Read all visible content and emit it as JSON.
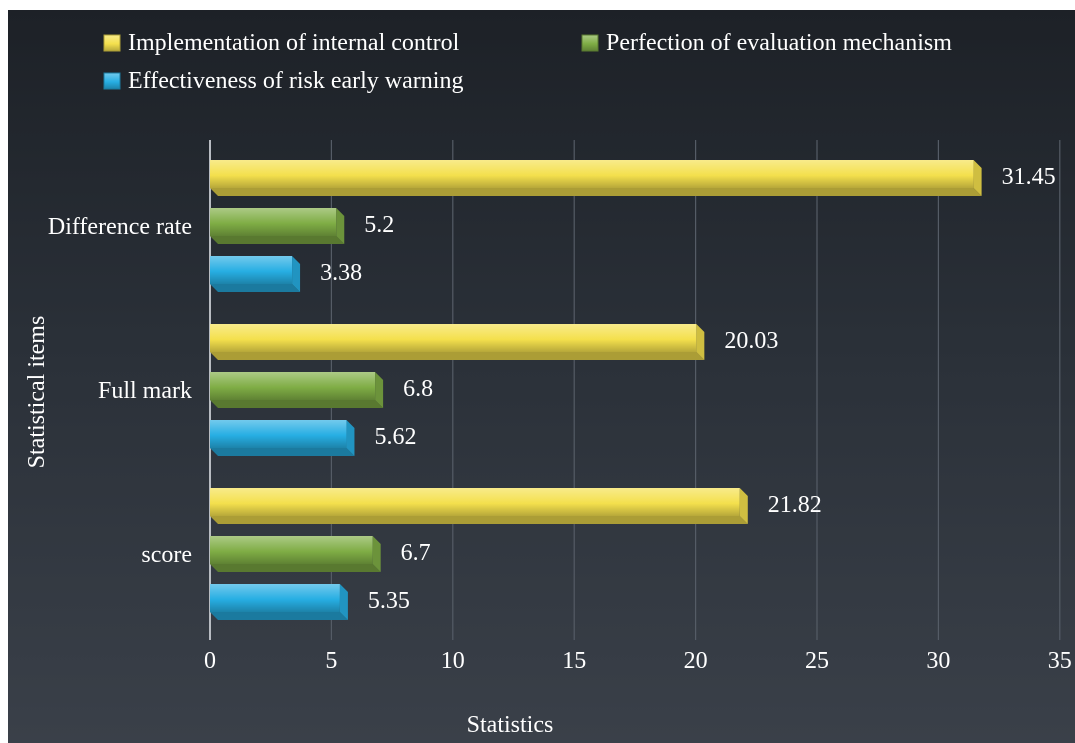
{
  "chart_data": {
    "type": "bar",
    "orientation": "horizontal",
    "categories": [
      "Difference rate",
      "Full mark",
      "score"
    ],
    "series": [
      {
        "name": "Implementation of internal control",
        "values": [
          31.45,
          20.03,
          21.82
        ],
        "color": "#f4e04d"
      },
      {
        "name": "Perfection of evaluation mechanism",
        "values": [
          5.2,
          6.8,
          6.7
        ],
        "color": "#7fad45"
      },
      {
        "name": "Effectiveness of risk early warning",
        "values": [
          3.38,
          5.62,
          5.35
        ],
        "color": "#27aee3"
      }
    ],
    "data_labels": [
      [
        "31.45",
        "20.03",
        "21.82"
      ],
      [
        "5.2",
        "6.8",
        "6.7"
      ],
      [
        "3.38",
        "5.62",
        "5.35"
      ]
    ],
    "xlabel": "Statistics",
    "ylabel": "Statistical items",
    "xlim": [
      0,
      35
    ],
    "xticks": [
      0,
      5,
      10,
      15,
      20,
      25,
      30,
      35
    ],
    "grid": true,
    "legend_position": "top",
    "style": "3d"
  }
}
